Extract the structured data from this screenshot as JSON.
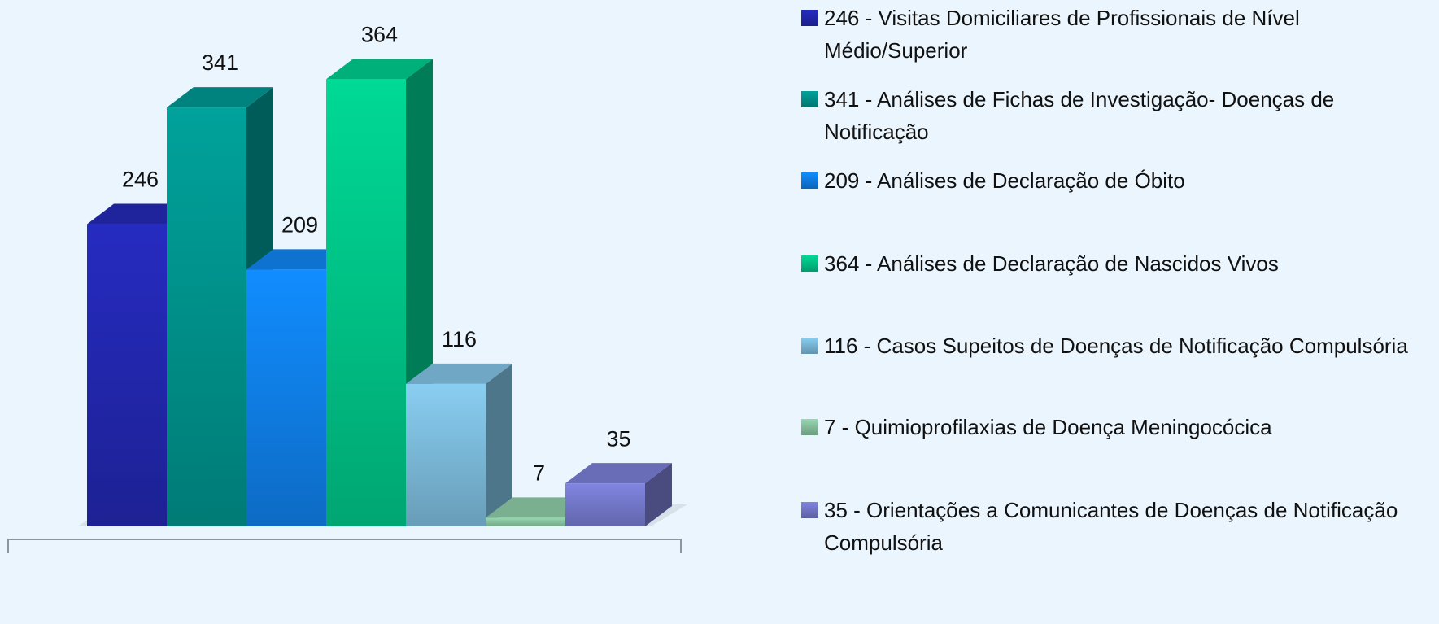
{
  "chart_data": {
    "type": "bar",
    "ylim": [
      0,
      400
    ],
    "series": [
      {
        "name": "246 - Visitas Domiciliares de Profissionais de Nível Médio/Superior",
        "color": "#2429b8",
        "values": [
          246
        ]
      },
      {
        "name": "341 - Análises de Fichas de Investigação- Doenças de Notificação",
        "color": "#009a94",
        "values": [
          341
        ]
      },
      {
        "name": "209 - Análises de Declaração de Óbito",
        "color": "#1086f5",
        "values": [
          209
        ]
      },
      {
        "name": "364 - Análises de Declaração de Nascidos Vivos",
        "color": "#00cf8f",
        "values": [
          364
        ]
      },
      {
        "name": "116 - Casos Supeitos de Doenças de Notificação Compulsória",
        "color": "#82c4e6",
        "values": [
          116
        ]
      },
      {
        "name": "7 - Quimioprofilaxias de Doença Meningocócica",
        "color": "#8fcfa8",
        "values": [
          7
        ]
      },
      {
        "name": "35 - Orientações a Comunicantes de Doenças de Notificação Compulsória",
        "color": "#7b7fd6",
        "values": [
          35
        ]
      }
    ]
  }
}
